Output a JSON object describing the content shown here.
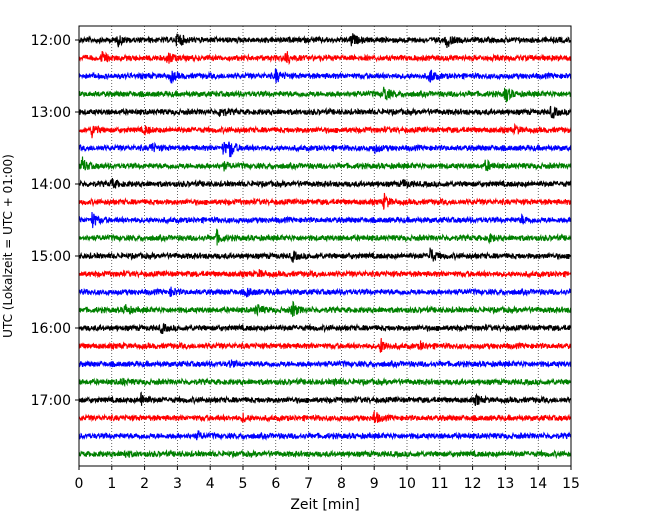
{
  "chart_data": {
    "type": "line",
    "title": "",
    "xlabel": "Zeit  [min]",
    "ylabel": "UTC (Lokalzeit = UTC + 01:00)",
    "xlim": [
      0,
      15
    ],
    "x_ticks": [
      0,
      1,
      2,
      3,
      4,
      5,
      6,
      7,
      8,
      9,
      10,
      11,
      12,
      13,
      14,
      15
    ],
    "y_ticks": [
      "12:00",
      "13:00",
      "14:00",
      "15:00",
      "16:00",
      "17:00"
    ],
    "grid": "vertical dotted",
    "trace_interval_min": 15,
    "traces": [
      {
        "start": "12:00",
        "color": "#000000",
        "events": [
          [
            1.2,
            0.5
          ],
          [
            3.0,
            1.0
          ],
          [
            8.3,
            0.7
          ],
          [
            11.2,
            0.8
          ]
        ]
      },
      {
        "start": "12:15",
        "color": "#ff0000",
        "events": [
          [
            0.7,
            0.6
          ],
          [
            2.7,
            0.7
          ],
          [
            6.3,
            0.8
          ]
        ]
      },
      {
        "start": "12:30",
        "color": "#0000ff",
        "events": [
          [
            2.8,
            0.6
          ],
          [
            6.0,
            0.7
          ],
          [
            10.7,
            0.8
          ]
        ]
      },
      {
        "start": "12:45",
        "color": "#008000",
        "events": [
          [
            9.3,
            0.9
          ],
          [
            13.0,
            0.9
          ]
        ]
      },
      {
        "start": "13:00",
        "color": "#000000",
        "events": [
          [
            4.3,
            0.6
          ],
          [
            14.4,
            0.7
          ]
        ]
      },
      {
        "start": "13:15",
        "color": "#ff0000",
        "events": [
          [
            0.4,
            0.7
          ],
          [
            2.0,
            0.4
          ],
          [
            13.3,
            0.4
          ]
        ]
      },
      {
        "start": "13:30",
        "color": "#0000ff",
        "events": [
          [
            2.2,
            0.5
          ],
          [
            4.4,
            0.6
          ],
          [
            4.6,
            0.9
          ],
          [
            9.0,
            0.5
          ]
        ]
      },
      {
        "start": "13:45",
        "color": "#008000",
        "events": [
          [
            0.1,
            0.8
          ],
          [
            4.4,
            0.4
          ],
          [
            12.4,
            0.6
          ]
        ]
      },
      {
        "start": "14:00",
        "color": "#000000",
        "events": [
          [
            1.0,
            0.5
          ],
          [
            9.9,
            0.4
          ]
        ]
      },
      {
        "start": "14:15",
        "color": "#ff0000",
        "events": [
          [
            9.3,
            0.8
          ]
        ]
      },
      {
        "start": "14:30",
        "color": "#0000ff",
        "events": [
          [
            0.4,
            0.8
          ],
          [
            13.5,
            0.4
          ]
        ]
      },
      {
        "start": "14:45",
        "color": "#008000",
        "events": [
          [
            4.2,
            0.7
          ],
          [
            12.5,
            0.4
          ]
        ]
      },
      {
        "start": "15:00",
        "color": "#000000",
        "events": [
          [
            6.5,
            0.5
          ],
          [
            10.7,
            0.9
          ]
        ]
      },
      {
        "start": "15:15",
        "color": "#ff0000",
        "events": [
          [
            5.5,
            0.3
          ]
        ]
      },
      {
        "start": "15:30",
        "color": "#0000ff",
        "events": [
          [
            2.8,
            0.4
          ],
          [
            5.1,
            0.5
          ]
        ]
      },
      {
        "start": "15:45",
        "color": "#008000",
        "events": [
          [
            1.4,
            0.5
          ],
          [
            5.4,
            0.7
          ],
          [
            6.5,
            0.9
          ]
        ]
      },
      {
        "start": "16:00",
        "color": "#000000",
        "events": [
          [
            2.5,
            0.5
          ]
        ]
      },
      {
        "start": "16:15",
        "color": "#ff0000",
        "events": [
          [
            9.2,
            0.8
          ],
          [
            10.4,
            0.4
          ]
        ]
      },
      {
        "start": "16:30",
        "color": "#0000ff",
        "events": [
          [
            4.6,
            0.3
          ]
        ]
      },
      {
        "start": "16:45",
        "color": "#008000",
        "events": [
          [
            1.3,
            0.3
          ],
          [
            7.8,
            0.3
          ]
        ]
      },
      {
        "start": "17:00",
        "color": "#000000",
        "events": [
          [
            1.9,
            0.8
          ],
          [
            12.1,
            0.5
          ]
        ]
      },
      {
        "start": "17:15",
        "color": "#ff0000",
        "events": [
          [
            5.0,
            0.4
          ],
          [
            9.0,
            0.7
          ]
        ]
      },
      {
        "start": "17:30",
        "color": "#0000ff",
        "events": [
          [
            3.6,
            0.4
          ]
        ]
      },
      {
        "start": "17:45",
        "color": "#008000",
        "events": [
          [
            1.4,
            0.3
          ]
        ]
      }
    ]
  }
}
